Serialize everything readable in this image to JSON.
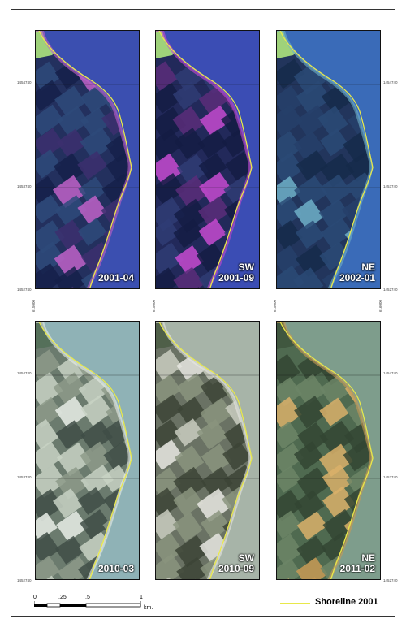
{
  "panels": [
    {
      "sub": "",
      "date": "2001-04",
      "style": "sar1"
    },
    {
      "sub": "SW",
      "date": "2001-09",
      "style": "sar2"
    },
    {
      "sub": "NE",
      "date": "2002-01",
      "style": "sar3"
    },
    {
      "sub": "",
      "date": "2010-03",
      "style": "opt1"
    },
    {
      "sub": "SW",
      "date": "2010-09",
      "style": "opt2"
    },
    {
      "sub": "NE",
      "date": "2011-02",
      "style": "opt3"
    }
  ],
  "y_labels_top": [
    "1454740",
    "1453740",
    "1452740"
  ],
  "y_labels_bottom": [
    "1454740",
    "1453740",
    "1452740"
  ],
  "x_labels": [
    "615000",
    "615000",
    "615000",
    "616000"
  ],
  "scale_bar": {
    "ticks": [
      "0",
      ".25",
      ".5",
      "1"
    ],
    "unit": "km."
  },
  "legend": {
    "label": "Shoreline 2001",
    "color": "#e8e84a"
  }
}
